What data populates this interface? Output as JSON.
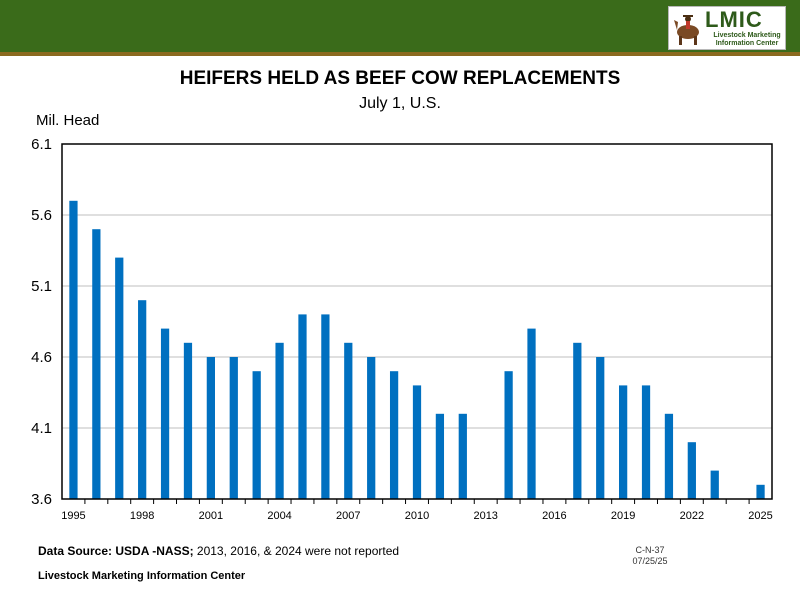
{
  "header": {
    "logo_text": "LMIC",
    "logo_sub_line1": "Livestock Marketing",
    "logo_sub_line2": "Information Center"
  },
  "footer": {
    "source_label": "Data Source: USDA -NASS;",
    "source_note": " 2013, 2016, & 2024 were not reported",
    "org": "Livestock Marketing Information Center",
    "chart_code": "C-N-37",
    "chart_date": "07/25/25"
  },
  "colors": {
    "bar": "#0070c0",
    "header_green": "#3a6b1a",
    "grid": "#bfbfbf"
  },
  "chart_data": {
    "type": "bar",
    "title": "HEIFERS HELD AS BEEF COW REPLACEMENTS",
    "subtitle": "July 1, U.S.",
    "ylabel": "Mil. Head",
    "xlabel": "",
    "ylim": [
      3.6,
      6.1
    ],
    "yticks": [
      "3.6",
      "4.1",
      "4.6",
      "5.1",
      "5.6",
      "6.1"
    ],
    "xtick_labels": [
      "1995",
      "1998",
      "2001",
      "2004",
      "2007",
      "2010",
      "2013",
      "2016",
      "2019",
      "2022",
      "2025"
    ],
    "grid": true,
    "categories": [
      "1995",
      "1996",
      "1997",
      "1998",
      "1999",
      "2000",
      "2001",
      "2002",
      "2003",
      "2004",
      "2005",
      "2006",
      "2007",
      "2008",
      "2009",
      "2010",
      "2011",
      "2012",
      "2013",
      "2014",
      "2015",
      "2016",
      "2017",
      "2018",
      "2019",
      "2020",
      "2021",
      "2022",
      "2023",
      "2024",
      "2025"
    ],
    "values": [
      5.7,
      5.5,
      5.3,
      5.0,
      4.8,
      4.7,
      4.6,
      4.6,
      4.5,
      4.7,
      4.9,
      4.9,
      4.7,
      4.6,
      4.5,
      4.4,
      4.2,
      4.2,
      null,
      4.5,
      4.8,
      null,
      4.7,
      4.6,
      4.4,
      4.4,
      4.2,
      4.0,
      3.8,
      null,
      3.7
    ]
  }
}
